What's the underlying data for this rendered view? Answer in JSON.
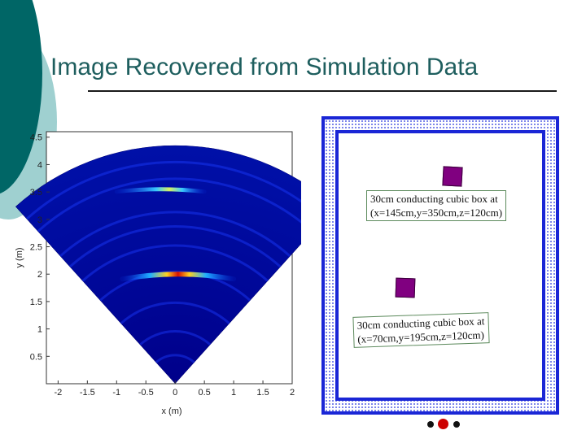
{
  "slide": {
    "title": "Image Recovered from Simulation Data"
  },
  "colors": {
    "accent_teal": "#006666",
    "light_teal": "#8fc7c7",
    "room_border": "#1a26d6",
    "box_fill": "#800080",
    "dot_dark": "#111111",
    "dot_red": "#cc0000"
  },
  "plot": {
    "xlabel": "x (m)",
    "ylabel": "y (m)",
    "x_ticks": [
      "-2",
      "-1.5",
      "-1",
      "-0.5",
      "0",
      "0.5",
      "1",
      "1.5",
      "2"
    ],
    "y_ticks": [
      "0.5",
      "1",
      "1.5",
      "2",
      "2.5",
      "3",
      "3.5",
      "4",
      "4.5"
    ]
  },
  "chart_data": {
    "type": "heatmap",
    "xlabel": "x (m)",
    "ylabel": "y (m)",
    "xlim": [
      -2.2,
      2.0
    ],
    "ylim": [
      0,
      4.6
    ],
    "sector": {
      "apex": [
        0,
        0
      ],
      "radius": 4.35,
      "half_angle_deg": 42
    },
    "reflections": [
      {
        "x": [
          -1.0,
          0.5
        ],
        "y": 3.55,
        "peak_x": 0.1,
        "intensity": "medium"
      },
      {
        "x": [
          -0.9,
          1.0
        ],
        "y": 2.0,
        "peak_x": -0.3,
        "intensity": "high"
      }
    ]
  },
  "room": {
    "boxes": [
      {
        "caption_line1": "30cm conducting cubic box at",
        "caption_line2": "(x=145cm,y=350cm,z=120cm)"
      },
      {
        "caption_line1": "30cm conducting cubic box at",
        "caption_line2": "(x=70cm,y=195cm,z=120cm)"
      }
    ]
  },
  "nav": {
    "dots": [
      "dot-left",
      "dot-current",
      "dot-right"
    ]
  }
}
